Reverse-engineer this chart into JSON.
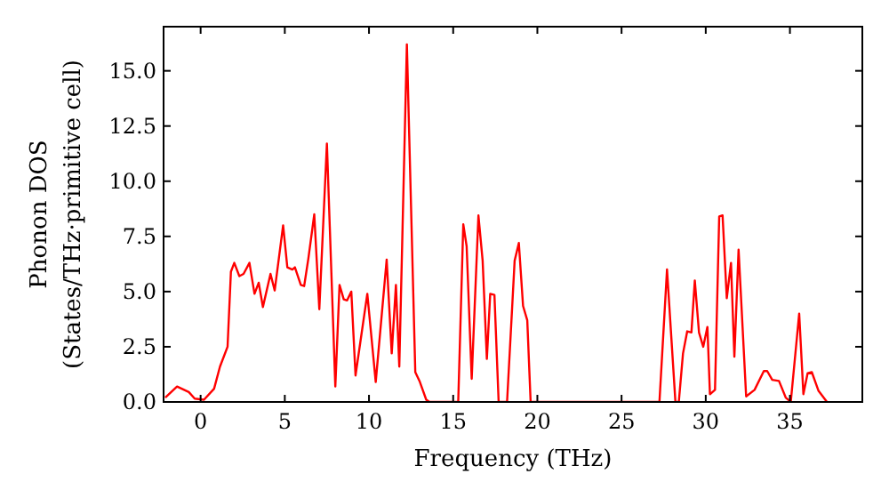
{
  "chart_data": {
    "type": "line",
    "xlabel": "Frequency (THz)",
    "ylabel": "Phonon DOS\n(States/THz·primitive cell)",
    "xlim": [
      -2.2,
      39.3
    ],
    "ylim": [
      0,
      17.0
    ],
    "xticks": [
      0,
      5,
      10,
      15,
      20,
      25,
      30,
      35
    ],
    "yticks": [
      {
        "value": 0,
        "label": "0.0"
      },
      {
        "value": 2.5,
        "label": "2.5"
      },
      {
        "value": 5,
        "label": "5.0"
      },
      {
        "value": 7.5,
        "label": "7.5"
      },
      {
        "value": 10,
        "label": "10.0"
      },
      {
        "value": 12.5,
        "label": "12.5"
      },
      {
        "value": 15,
        "label": "15.0"
      }
    ],
    "grid": false,
    "marker": "none",
    "line_style": "solid",
    "series": [
      {
        "color": "#ff0000",
        "x": [
          -2.1,
          -1.4,
          -0.7,
          -0.35,
          0.2,
          0.8,
          1.15,
          1.6,
          1.8,
          2.0,
          2.3,
          2.55,
          2.9,
          3.2,
          3.45,
          3.7,
          4.15,
          4.4,
          4.9,
          5.15,
          5.45,
          5.6,
          5.95,
          6.15,
          6.4,
          6.75,
          7.05,
          7.5,
          8.0,
          8.25,
          8.5,
          8.7,
          8.95,
          9.2,
          9.9,
          10.4,
          11.05,
          11.35,
          11.6,
          11.8,
          12.25,
          12.75,
          13.0,
          13.4,
          13.6,
          15.3,
          15.6,
          15.8,
          16.1,
          16.5,
          16.75,
          17.0,
          17.2,
          17.45,
          17.7,
          18.2,
          18.5,
          18.65,
          18.9,
          19.15,
          19.4,
          19.6,
          27.25,
          27.7,
          28.2,
          28.4,
          28.65,
          28.9,
          29.15,
          29.35,
          29.6,
          29.85,
          30.1,
          30.25,
          30.55,
          30.8,
          31.0,
          31.25,
          31.5,
          31.7,
          31.95,
          32.4,
          32.9,
          33.45,
          33.65,
          33.95,
          34.35,
          34.75,
          35.05,
          35.55,
          35.8,
          36.05,
          36.3,
          36.7,
          37.2
        ],
        "values": [
          0.2,
          0.7,
          0.45,
          0.15,
          0.1,
          0.6,
          1.6,
          2.5,
          5.9,
          6.3,
          5.7,
          5.8,
          6.3,
          4.9,
          5.4,
          4.3,
          5.8,
          5.05,
          8.0,
          6.1,
          6.0,
          6.1,
          5.3,
          5.25,
          6.5,
          8.5,
          4.2,
          11.7,
          0.7,
          5.3,
          4.65,
          4.6,
          5.0,
          1.2,
          4.9,
          0.9,
          6.45,
          2.2,
          5.3,
          1.6,
          16.2,
          1.35,
          0.95,
          0.1,
          0,
          0,
          8.05,
          7.05,
          1.05,
          8.45,
          6.4,
          1.95,
          4.9,
          4.85,
          0,
          0,
          4.25,
          6.4,
          7.2,
          4.35,
          3.7,
          0,
          0,
          6.0,
          0,
          0,
          2.2,
          3.2,
          3.15,
          5.5,
          3.15,
          2.5,
          3.4,
          0.35,
          0.55,
          8.4,
          8.45,
          4.7,
          6.3,
          2.05,
          6.9,
          0.25,
          0.55,
          1.4,
          1.4,
          1.0,
          0.95,
          0.2,
          0,
          4.0,
          0.35,
          1.3,
          1.35,
          0.5,
          0
        ]
      }
    ]
  }
}
